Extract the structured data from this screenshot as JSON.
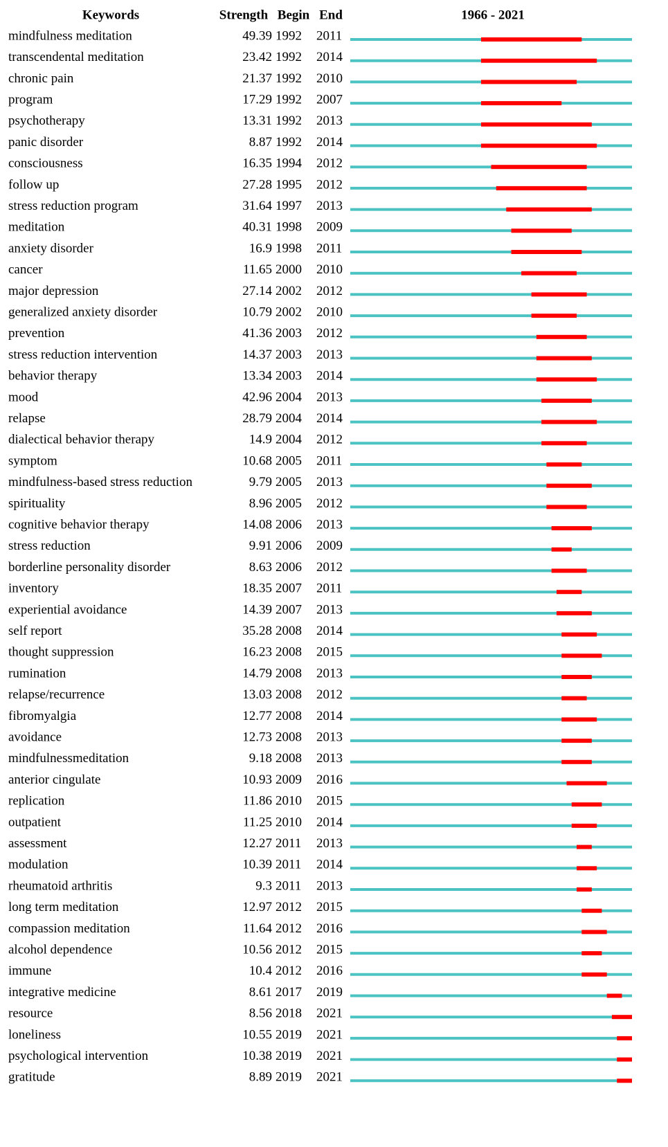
{
  "chart_data": {
    "type": "burst",
    "headers": [
      "Keywords",
      "Strength",
      "Begin",
      "End"
    ],
    "title": "1966 - 2021",
    "xlim": [
      1966,
      2021
    ],
    "line_color": "#4cc3c3",
    "burst_color": "#ff0000",
    "categories": [
      "mindfulness meditation",
      "transcendental meditation",
      "chronic pain",
      "program",
      "psychotherapy",
      "panic disorder",
      "consciousness",
      "follow up",
      "stress reduction program",
      "meditation",
      "anxiety disorder",
      "cancer",
      "major depression",
      "generalized anxiety disorder",
      "prevention",
      "stress reduction intervention",
      "behavior therapy",
      "mood",
      "relapse",
      "dialectical behavior therapy",
      "symptom",
      "mindfulness-based stress reduction",
      "spirituality",
      "cognitive behavior therapy",
      "stress reduction",
      "borderline personality disorder",
      "inventory",
      "experiential avoidance",
      "self report",
      "thought suppression",
      "rumination",
      "relapse/recurrence",
      "fibromyalgia",
      "avoidance",
      "mindfulnessmeditation",
      "anterior cingulate",
      "replication",
      "outpatient",
      "assessment",
      "modulation",
      "rheumatoid arthritis",
      "long term meditation",
      "compassion meditation",
      "alcohol dependence",
      "immune",
      "integrative medicine",
      "resource",
      "loneliness",
      "psychological intervention",
      "gratitude"
    ],
    "strength": [
      49.39,
      23.42,
      21.37,
      17.29,
      13.31,
      8.87,
      16.35,
      27.28,
      31.64,
      40.31,
      16.9,
      11.65,
      27.14,
      10.79,
      41.36,
      14.37,
      13.34,
      42.96,
      28.79,
      14.9,
      10.68,
      9.79,
      8.96,
      14.08,
      9.91,
      8.63,
      18.35,
      14.39,
      35.28,
      16.23,
      14.79,
      13.03,
      12.77,
      12.73,
      9.18,
      10.93,
      11.86,
      11.25,
      12.27,
      10.39,
      9.3,
      12.97,
      11.64,
      10.56,
      10.4,
      8.61,
      8.56,
      10.55,
      10.38,
      8.89
    ],
    "begin": [
      1992,
      1992,
      1992,
      1992,
      1992,
      1992,
      1994,
      1995,
      1997,
      1998,
      1998,
      2000,
      2002,
      2002,
      2003,
      2003,
      2003,
      2004,
      2004,
      2004,
      2005,
      2005,
      2005,
      2006,
      2006,
      2006,
      2007,
      2007,
      2008,
      2008,
      2008,
      2008,
      2008,
      2008,
      2008,
      2009,
      2010,
      2010,
      2011,
      2011,
      2011,
      2012,
      2012,
      2012,
      2012,
      2017,
      2018,
      2019,
      2019,
      2019
    ],
    "end": [
      2011,
      2014,
      2010,
      2007,
      2013,
      2014,
      2012,
      2012,
      2013,
      2009,
      2011,
      2010,
      2012,
      2010,
      2012,
      2013,
      2014,
      2013,
      2014,
      2012,
      2011,
      2013,
      2012,
      2013,
      2009,
      2012,
      2011,
      2013,
      2014,
      2015,
      2013,
      2012,
      2014,
      2013,
      2013,
      2016,
      2015,
      2014,
      2013,
      2014,
      2013,
      2015,
      2016,
      2015,
      2016,
      2019,
      2021,
      2021,
      2021,
      2021
    ]
  }
}
